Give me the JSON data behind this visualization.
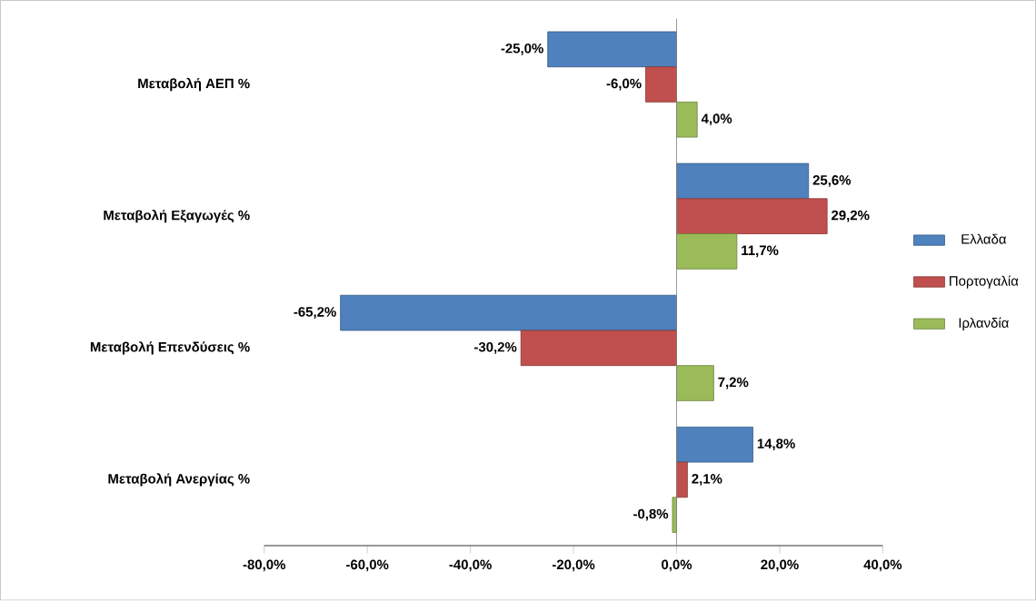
{
  "chart_data": {
    "type": "bar",
    "orientation": "horizontal",
    "categories": [
      "Μεταβολή ΑΕΠ %",
      "Μεταβολή Εξαγωγές %",
      "Μεταβολή Επενδύσεις %",
      "Μεταβολή Ανεργίας %"
    ],
    "series": [
      {
        "name": "Ελλαδα",
        "color": "#4f81bd",
        "values": [
          -25.0,
          25.6,
          -65.2,
          14.8
        ],
        "value_labels": [
          "-25,0%",
          "25,6%",
          "-65,2%",
          "14,8%"
        ]
      },
      {
        "name": "Πορτογαλία",
        "color": "#c0504d",
        "values": [
          -6.0,
          29.2,
          -30.2,
          2.1
        ],
        "value_labels": [
          "-6,0%",
          "29,2%",
          "-30,2%",
          "2,1%"
        ]
      },
      {
        "name": "Ιρλανδία",
        "color": "#9bbb59",
        "values": [
          4.0,
          11.7,
          7.2,
          -0.8
        ],
        "value_labels": [
          "4,0%",
          "11,7%",
          "7,2%",
          "-0,8%"
        ]
      }
    ],
    "xlim": [
      -80,
      40
    ],
    "xticks": [
      {
        "value": -80,
        "label": "-80,0%"
      },
      {
        "value": -60,
        "label": "-60,0%"
      },
      {
        "value": -40,
        "label": "-40,0%"
      },
      {
        "value": -20,
        "label": "-20,0%"
      },
      {
        "value": 0,
        "label": "0,0%"
      },
      {
        "value": 20,
        "label": "20,0%"
      },
      {
        "value": 40,
        "label": "40,0%"
      }
    ],
    "legend": "right"
  }
}
